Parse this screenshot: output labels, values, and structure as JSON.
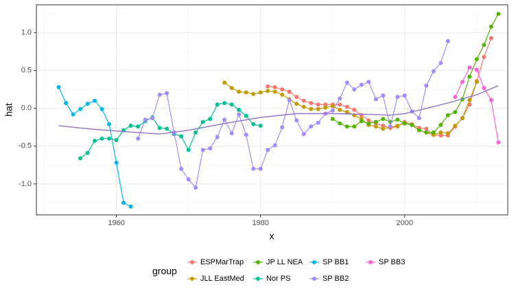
{
  "chart_data": {
    "type": "line",
    "x_label": "x",
    "y_label": "hat",
    "legend_title": "group",
    "xlim": [
      1948.9,
      2014.3
    ],
    "xticks": [
      1960,
      1980,
      2000
    ],
    "ylim": [
      -1.41,
      1.37
    ],
    "yticks": [
      {
        "value": -1,
        "label": "-1.0"
      },
      {
        "value": -0.5,
        "label": "-0.5"
      },
      {
        "value": 0,
        "label": "0.0"
      },
      0.5,
      {
        "value": 1,
        "label": "1.0"
      }
    ],
    "grid": true,
    "legend_position": "bottom",
    "series": [
      {
        "name": "ESPMarTrap",
        "color": "#F8766D",
        "x": [
          1981,
          1982,
          1983,
          1984,
          1985,
          1986,
          1987,
          1988,
          1989,
          1990,
          1991,
          1992,
          1993,
          1994,
          1995,
          1996,
          1997,
          1998,
          1999,
          2000,
          2001,
          2002,
          2003,
          2004,
          2005,
          2006,
          2007,
          2008,
          2009,
          2010,
          2011,
          2012
        ],
        "values": [
          0.29,
          0.28,
          0.25,
          0.22,
          0.15,
          0.1,
          0.07,
          0.05,
          0.05,
          0.05,
          0.05,
          0.02,
          -0.02,
          -0.09,
          -0.16,
          -0.2,
          -0.23,
          -0.26,
          -0.24,
          -0.18,
          -0.21,
          -0.26,
          -0.27,
          -0.35,
          -0.36,
          -0.36,
          -0.24,
          -0.13,
          0.05,
          0.36,
          0.68,
          0.93
        ]
      },
      {
        "name": "JLL EastMed",
        "color": "#C49A00",
        "x": [
          1975,
          1976,
          1977,
          1978,
          1979,
          1980,
          1981,
          1982,
          1983,
          1984,
          1985,
          1986,
          1987,
          1988,
          1989,
          1990,
          1991,
          1992,
          1993,
          1994,
          1995,
          1996,
          1997,
          1998,
          1999,
          2000,
          2001,
          2002,
          2003,
          2004,
          2005,
          2006,
          2007,
          2008,
          2009,
          2010
        ],
        "values": [
          0.34,
          0.27,
          0.22,
          0.21,
          0.19,
          0.21,
          0.23,
          0.22,
          0.18,
          0.12,
          0.06,
          0.02,
          -0.01,
          -0.01,
          0.01,
          0.03,
          -0.02,
          -0.05,
          -0.09,
          -0.14,
          -0.22,
          -0.24,
          -0.27,
          -0.25,
          -0.23,
          -0.2,
          -0.22,
          -0.29,
          -0.32,
          -0.35,
          -0.32,
          -0.33,
          -0.23,
          -0.13,
          0.11,
          0.35
        ]
      },
      {
        "name": "JP LL NEA",
        "color": "#53B400",
        "x": [
          1990,
          1991,
          1992,
          1993,
          1994,
          1995,
          1996,
          1997,
          1998,
          1999,
          2000,
          2001,
          2002,
          2003,
          2004,
          2005,
          2006,
          2007,
          2008,
          2009,
          2010,
          2011,
          2012,
          2013
        ],
        "values": [
          -0.14,
          -0.2,
          -0.24,
          -0.24,
          -0.17,
          -0.2,
          -0.18,
          -0.14,
          -0.18,
          -0.15,
          -0.2,
          -0.22,
          -0.29,
          -0.32,
          -0.32,
          -0.22,
          -0.09,
          -0.05,
          0.12,
          0.42,
          0.65,
          0.84,
          1.08,
          1.25
        ]
      },
      {
        "name": "Nor PS",
        "color": "#00C094",
        "x": [
          1955,
          1956,
          1957,
          1958,
          1959,
          1960,
          1961,
          1962,
          1963,
          1964,
          1965,
          1966,
          1967,
          1968,
          1969,
          1970,
          1971,
          1972,
          1973,
          1974,
          1975,
          1976,
          1977,
          1978,
          1979,
          1980
        ],
        "values": [
          -0.66,
          -0.59,
          -0.43,
          -0.4,
          -0.4,
          -0.42,
          -0.29,
          -0.23,
          -0.24,
          -0.17,
          -0.12,
          -0.26,
          -0.27,
          -0.34,
          -0.37,
          -0.55,
          -0.32,
          -0.18,
          -0.14,
          0.05,
          0.07,
          0.05,
          -0.02,
          -0.1,
          -0.21,
          -0.23
        ]
      },
      {
        "name": "SP BB1",
        "color": "#00B6EB",
        "x": [
          1952,
          1953,
          1954,
          1955,
          1956,
          1957,
          1958,
          1959,
          1960,
          1961,
          1962
        ],
        "values": [
          0.28,
          0.07,
          -0.08,
          -0.01,
          0.06,
          0.1,
          -0.01,
          -0.21,
          -0.72,
          -1.25,
          -1.3
        ]
      },
      {
        "name": "SP BB2",
        "color": "#A58AFF",
        "x": [
          1963,
          1964,
          1965,
          1966,
          1967,
          1968,
          1969,
          1970,
          1971,
          1972,
          1973,
          1974,
          1975,
          1976,
          1977,
          1978,
          1979,
          1980,
          1981,
          1982,
          1983,
          1984,
          1985,
          1986,
          1987,
          1988,
          1989,
          1990,
          1991,
          1992,
          1993,
          1994,
          1995,
          1996,
          1997,
          1998,
          1999,
          2000,
          2001,
          2002,
          2003,
          2004,
          2005,
          2006
        ],
        "values": [
          -0.4,
          -0.15,
          -0.13,
          0.18,
          0.2,
          -0.32,
          -0.8,
          -0.94,
          -1.05,
          -0.55,
          -0.53,
          -0.38,
          -0.15,
          -0.33,
          -0.08,
          -0.35,
          -0.8,
          -0.8,
          -0.55,
          -0.49,
          -0.25,
          0.11,
          -0.16,
          -0.34,
          -0.24,
          -0.19,
          -0.07,
          -0.03,
          0.13,
          0.34,
          0.25,
          0.31,
          0.35,
          0.12,
          0.17,
          -0.24,
          0.15,
          0.17,
          -0.04,
          -0.13,
          0.3,
          0.49,
          0.6,
          0.89
        ]
      },
      {
        "name": "SP BB3",
        "color": "#FB61D7",
        "x": [
          2007,
          2008,
          2009,
          2010,
          2011,
          2012,
          2013
        ],
        "values": [
          0.15,
          0.35,
          0.54,
          0.51,
          0.27,
          0.11,
          -0.45
        ]
      }
    ],
    "smooth": {
      "color": "#8F74C9",
      "x": [
        1952,
        1956,
        1960,
        1963,
        1966,
        1970,
        1975,
        1980,
        1985,
        1990,
        1995,
        1998,
        2000,
        2003,
        2006,
        2010,
        2013
      ],
      "values": [
        -0.23,
        -0.27,
        -0.3,
        -0.32,
        -0.34,
        -0.29,
        -0.2,
        -0.12,
        -0.07,
        -0.07,
        -0.08,
        -0.09,
        -0.07,
        0.0,
        0.07,
        0.18,
        0.3
      ]
    }
  }
}
